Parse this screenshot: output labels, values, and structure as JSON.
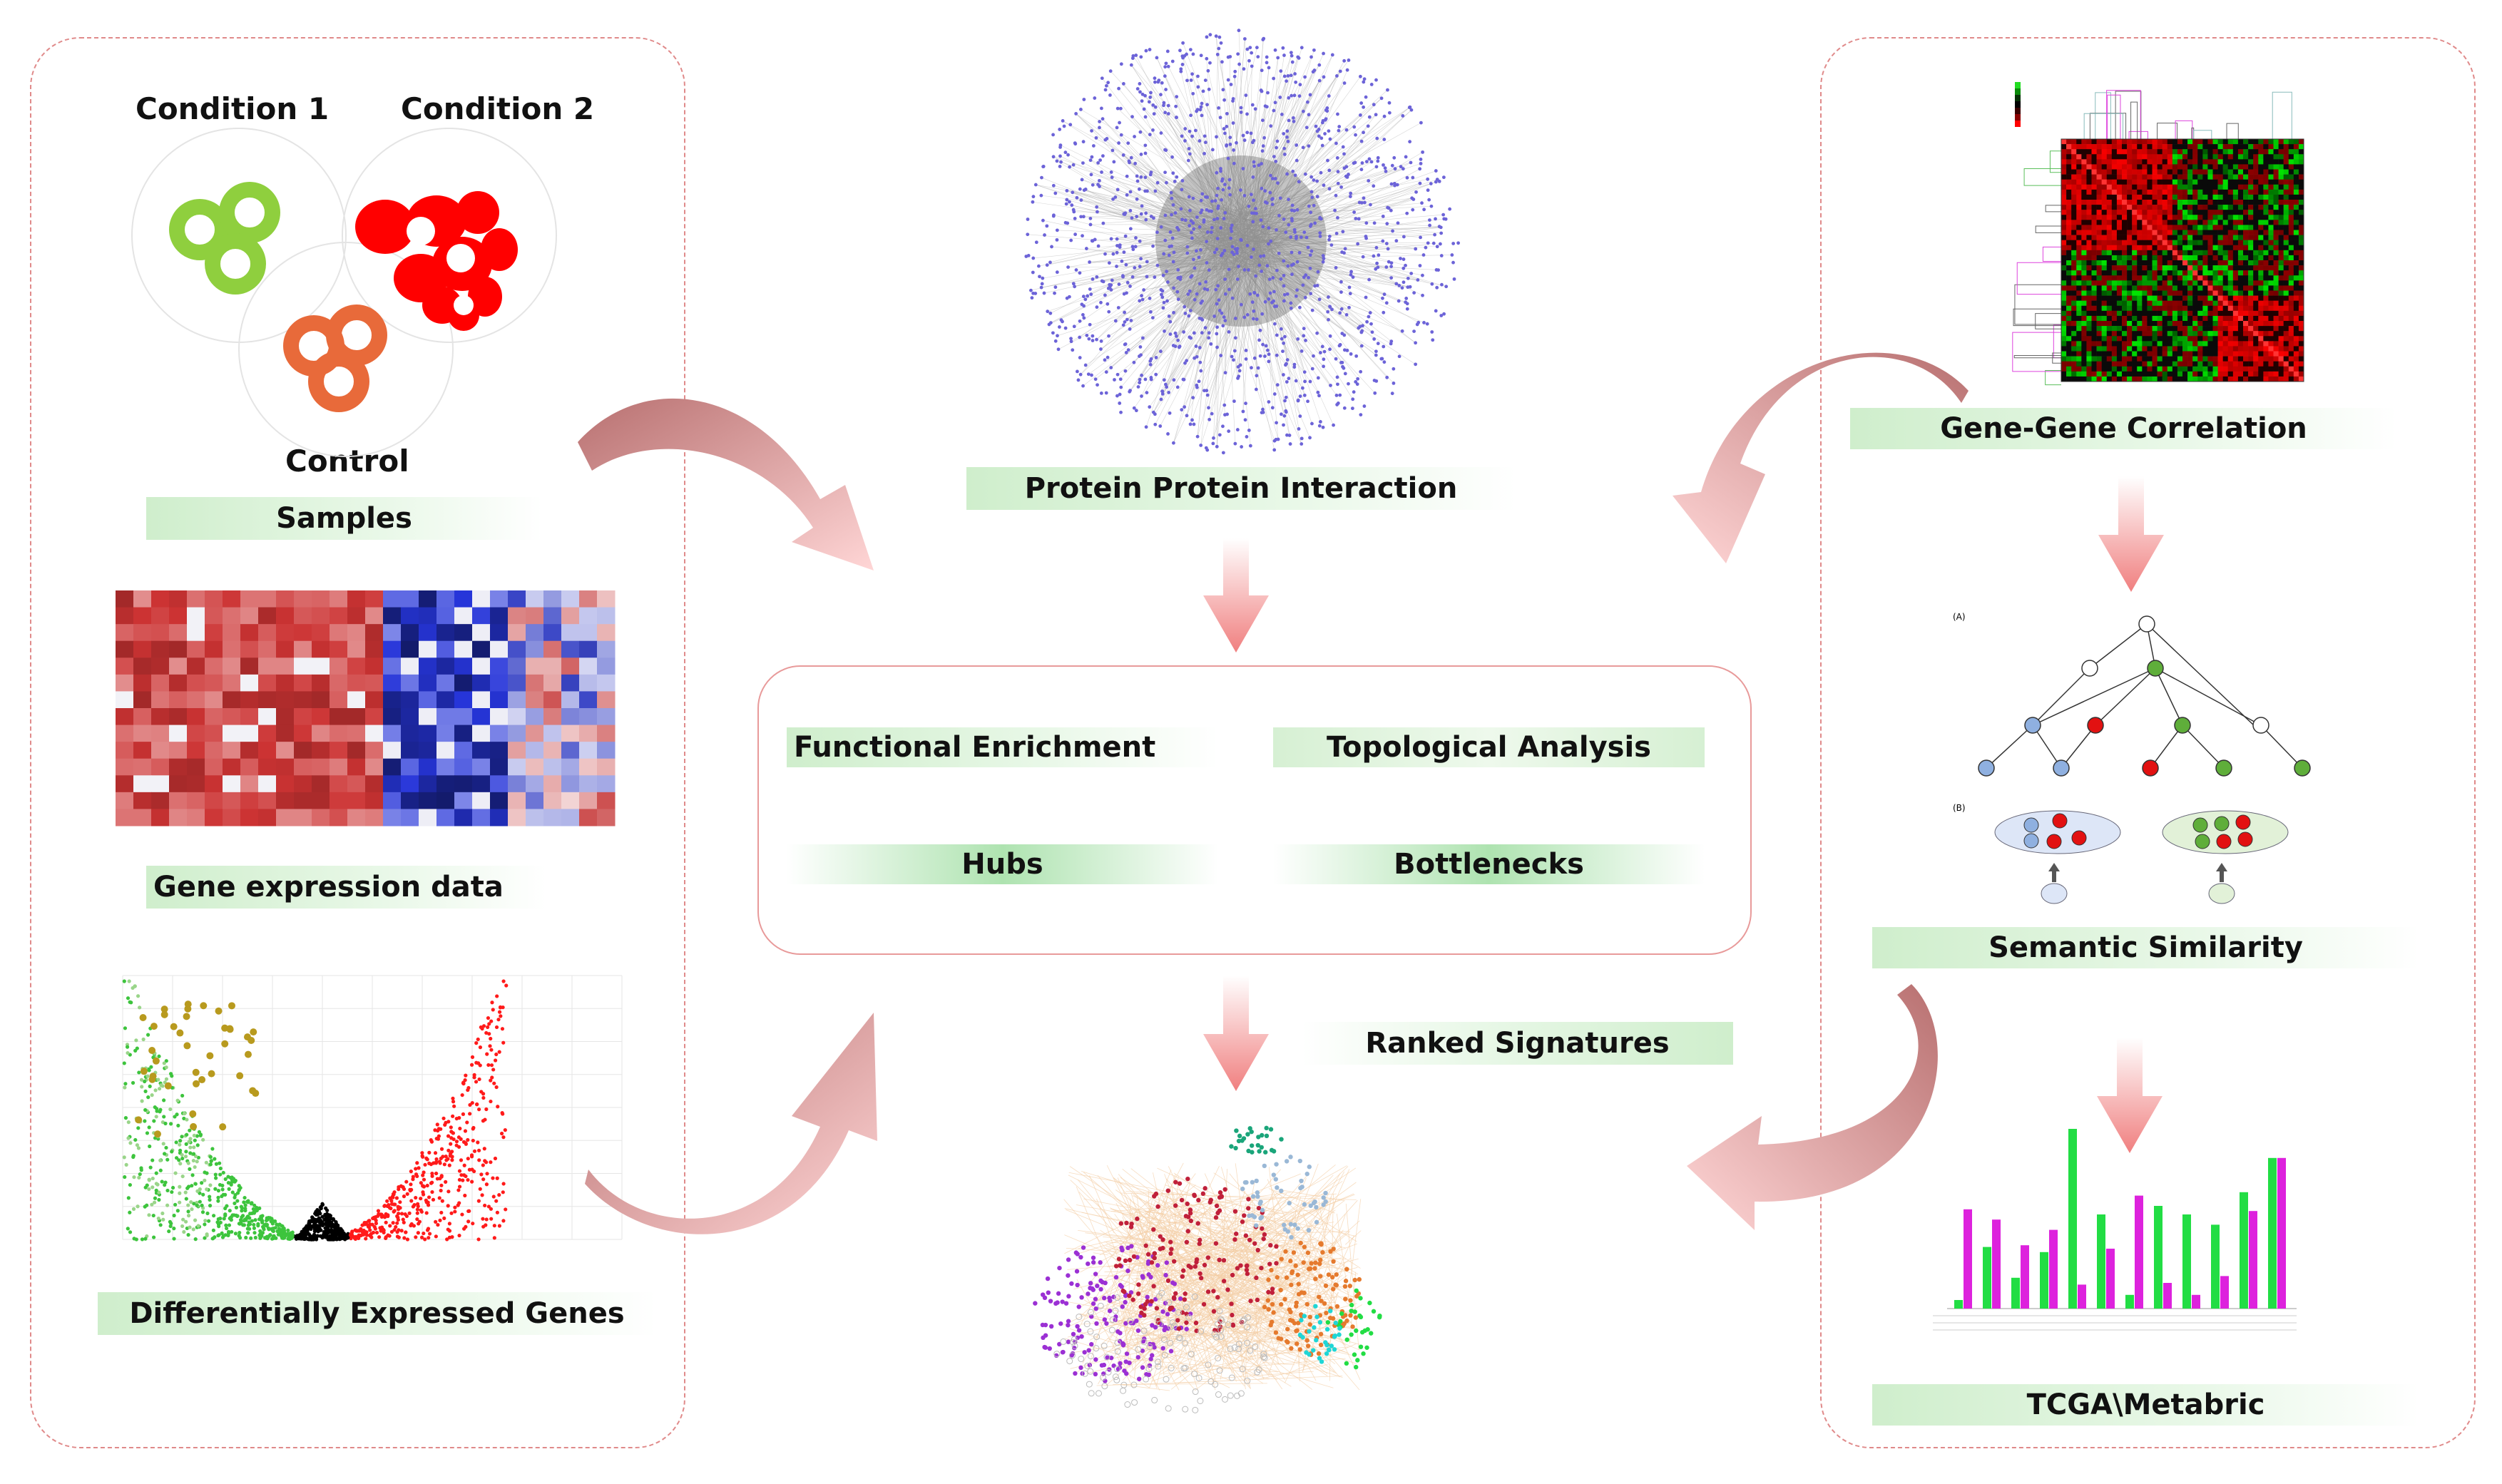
{
  "samples": {
    "condition1": "Condition 1",
    "condition2": "Condition 2",
    "control": "Control",
    "banner": "Samples"
  },
  "left": {
    "gene_expression": "Gene expression data",
    "deg": "Differentially Expressed Genes"
  },
  "center": {
    "ppi": "Protein Protein Interaction",
    "functional_enrichment": "Functional Enrichment",
    "topological_analysis": "Topological Analysis",
    "hubs": "Hubs",
    "bottlenecks": "Bottlenecks",
    "ranked_signatures": "Ranked Signatures"
  },
  "right": {
    "gene_gene_correlation": "Gene-Gene Correlation",
    "semantic_similarity": "Semantic Similarity",
    "tcga_metabric": "TCGA\\Metabric",
    "panel_a": "(A)",
    "panel_b": "(B)"
  },
  "colors": {
    "green_banner": "#cfeecc",
    "arrow": "#f08d8d",
    "arrow_dark": "#b86a6a",
    "panel_border": "#e08a8a",
    "cond1": "#8fcf3e",
    "cond2": "#ff0000",
    "control": "#e86a3a",
    "ppi_node": "#6c63d8",
    "heat_red": "#d43b3b",
    "heat_blue": "#1a1aa0",
    "bar_green": "#22dd44",
    "bar_magenta": "#dd22dd"
  },
  "icons": [
    "sample-circles",
    "heatmap",
    "volcano-plot",
    "network",
    "correlation-heatmap",
    "go-tree",
    "bar-chart"
  ]
}
